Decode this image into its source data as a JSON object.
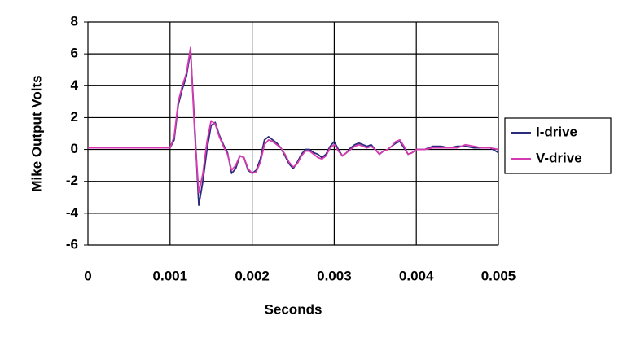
{
  "chart_data": {
    "type": "line",
    "x_label": "Seconds",
    "y_label": "Mike Output Volts",
    "x": [
      0,
      0.0005,
      0.00095,
      0.001,
      0.00105,
      0.0011,
      0.00115,
      0.0012,
      0.00125,
      0.0013,
      0.00135,
      0.0014,
      0.00145,
      0.0015,
      0.00155,
      0.0016,
      0.00165,
      0.0017,
      0.00175,
      0.0018,
      0.00185,
      0.0019,
      0.00195,
      0.002,
      0.00205,
      0.0021,
      0.00215,
      0.0022,
      0.00225,
      0.0023,
      0.00235,
      0.0024,
      0.00245,
      0.0025,
      0.00255,
      0.0026,
      0.00265,
      0.0027,
      0.00275,
      0.0028,
      0.00285,
      0.0029,
      0.00295,
      0.003,
      0.00305,
      0.0031,
      0.00315,
      0.0032,
      0.00325,
      0.0033,
      0.00335,
      0.0034,
      0.00345,
      0.0035,
      0.00355,
      0.0036,
      0.00365,
      0.0037,
      0.00375,
      0.0038,
      0.00385,
      0.0039,
      0.00395,
      0.004,
      0.0041,
      0.0042,
      0.0043,
      0.0044,
      0.0045,
      0.0046,
      0.0047,
      0.0048,
      0.0049,
      0.005
    ],
    "series": [
      {
        "name": "I-drive",
        "color": "#2b2b7c",
        "values": [
          0.1,
          0.1,
          0.1,
          0.1,
          0.6,
          2.8,
          3.8,
          4.6,
          6.2,
          1.5,
          -3.5,
          -2.0,
          0.0,
          1.5,
          1.7,
          0.9,
          0.3,
          -0.2,
          -1.5,
          -1.2,
          -0.4,
          -0.5,
          -1.3,
          -1.5,
          -1.3,
          -0.6,
          0.6,
          0.8,
          0.6,
          0.4,
          0.1,
          -0.4,
          -0.9,
          -1.2,
          -0.8,
          -0.3,
          0.0,
          0.0,
          -0.2,
          -0.3,
          -0.5,
          -0.3,
          0.2,
          0.5,
          0.0,
          -0.4,
          -0.2,
          0.1,
          0.3,
          0.4,
          0.3,
          0.2,
          0.3,
          0.0,
          -0.3,
          -0.1,
          0.0,
          0.2,
          0.4,
          0.5,
          0.1,
          -0.3,
          -0.2,
          0.0,
          0.0,
          0.2,
          0.2,
          0.1,
          0.2,
          0.2,
          0.1,
          0.1,
          0.1,
          -0.2
        ]
      },
      {
        "name": "V-drive",
        "color": "#d63ab0",
        "values": [
          0.1,
          0.1,
          0.1,
          0.1,
          0.8,
          3.0,
          4.0,
          4.8,
          6.4,
          1.0,
          -2.7,
          -1.5,
          0.5,
          1.8,
          1.6,
          0.8,
          0.2,
          -0.3,
          -1.3,
          -1.0,
          -0.4,
          -0.5,
          -1.2,
          -1.5,
          -1.4,
          -0.8,
          0.3,
          0.6,
          0.5,
          0.3,
          0.1,
          -0.3,
          -0.8,
          -1.1,
          -0.9,
          -0.4,
          -0.1,
          -0.1,
          -0.3,
          -0.5,
          -0.6,
          -0.4,
          0.1,
          0.3,
          -0.1,
          -0.4,
          -0.2,
          0.0,
          0.2,
          0.3,
          0.2,
          0.1,
          0.2,
          0.0,
          -0.3,
          -0.1,
          0.0,
          0.2,
          0.5,
          0.6,
          0.2,
          -0.3,
          -0.2,
          0.0,
          0.0,
          0.1,
          0.1,
          0.1,
          0.1,
          0.3,
          0.2,
          0.1,
          0.1,
          0.0
        ]
      }
    ],
    "xlim": [
      0,
      0.005
    ],
    "xticks": [
      0,
      0.001,
      0.002,
      0.003,
      0.004,
      0.005
    ],
    "ylim": [
      -6,
      8
    ],
    "yticks": [
      -6,
      -4,
      -2,
      0,
      2,
      4,
      6,
      8
    ],
    "grid": true,
    "legend": "right"
  }
}
